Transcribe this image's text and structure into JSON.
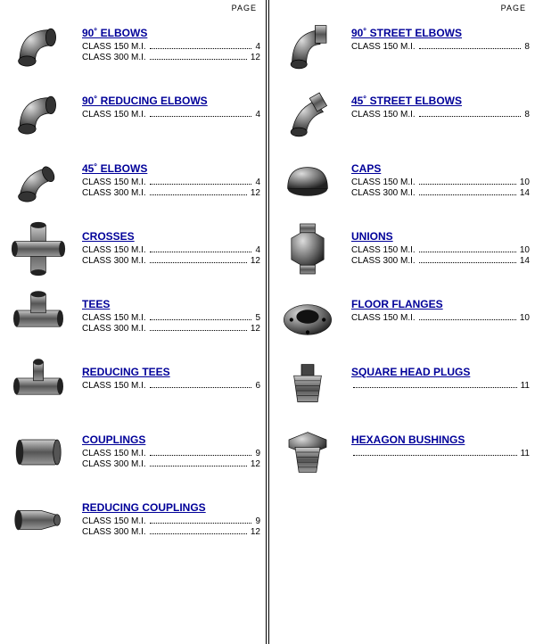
{
  "page_header": "PAGE",
  "left": [
    {
      "title": "90˚ ELBOWS",
      "lines": [
        {
          "label": "CLASS 150 M.I.",
          "page": "4"
        },
        {
          "label": "CLASS 300 M.I.",
          "page": "12"
        }
      ],
      "shape": "elbow90"
    },
    {
      "title": "90˚ REDUCING ELBOWS",
      "lines": [
        {
          "label": "CLASS 150 M.I.",
          "page": "4"
        }
      ],
      "shape": "elbow90r"
    },
    {
      "title": "45˚ ELBOWS",
      "lines": [
        {
          "label": "CLASS 150 M.I.",
          "page": "4"
        },
        {
          "label": "CLASS 300 M.I.",
          "page": "12"
        }
      ],
      "shape": "elbow45"
    },
    {
      "title": "CROSSES",
      "lines": [
        {
          "label": "CLASS 150 M.I.",
          "page": "4"
        },
        {
          "label": "CLASS 300 M.I.",
          "page": "12"
        }
      ],
      "shape": "cross"
    },
    {
      "title": "TEES",
      "lines": [
        {
          "label": "CLASS 150 M.I.",
          "page": "5"
        },
        {
          "label": "CLASS 300 M.I.",
          "page": "12"
        }
      ],
      "shape": "tee"
    },
    {
      "title": "REDUCING TEES",
      "lines": [
        {
          "label": "CLASS 150 M.I.",
          "page": "6"
        }
      ],
      "shape": "teeR"
    },
    {
      "title": "COUPLINGS",
      "lines": [
        {
          "label": "CLASS 150 M.I.",
          "page": "9"
        },
        {
          "label": "CLASS 300 M.I.",
          "page": "12"
        }
      ],
      "shape": "coupling"
    },
    {
      "title": "REDUCING COUPLINGS",
      "lines": [
        {
          "label": "CLASS 150 M.I.",
          "page": "9"
        },
        {
          "label": "CLASS 300 M.I.",
          "page": "12"
        }
      ],
      "shape": "couplingR"
    }
  ],
  "right": [
    {
      "title": "90˚ STREET ELBOWS",
      "lines": [
        {
          "label": "CLASS 150 M.I.",
          "page": "8"
        }
      ],
      "shape": "street90"
    },
    {
      "title": "45˚ STREET ELBOWS",
      "lines": [
        {
          "label": "CLASS 150 M.I.",
          "page": "8"
        }
      ],
      "shape": "street45"
    },
    {
      "title": "CAPS",
      "lines": [
        {
          "label": "CLASS 150 M.I.",
          "page": "10"
        },
        {
          "label": "CLASS 300 M.I.",
          "page": "14"
        }
      ],
      "shape": "cap"
    },
    {
      "title": "UNIONS",
      "lines": [
        {
          "label": "CLASS 150 M.I.",
          "page": "10"
        },
        {
          "label": "CLASS 300 M.I.",
          "page": "14"
        }
      ],
      "shape": "union"
    },
    {
      "title": "FLOOR FLANGES",
      "lines": [
        {
          "label": "CLASS 150 M.I.",
          "page": "10"
        }
      ],
      "shape": "flange"
    },
    {
      "title": "SQUARE HEAD PLUGS",
      "noclass_page": "11",
      "shape": "plug"
    },
    {
      "title": "HEXAGON BUSHINGS",
      "noclass_page": "11",
      "shape": "hexbush"
    }
  ]
}
